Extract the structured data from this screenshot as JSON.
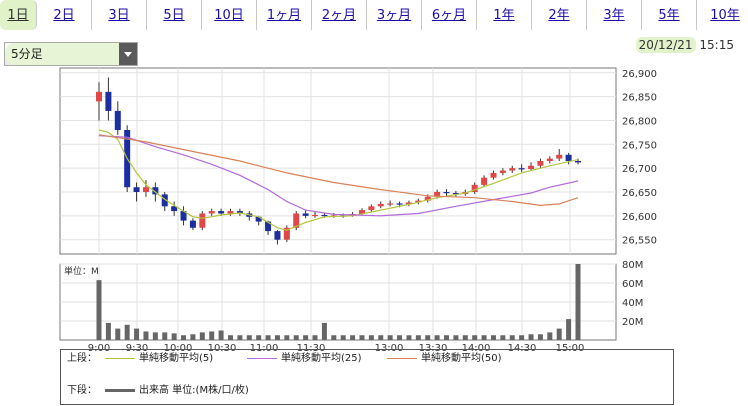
{
  "tabs": [
    {
      "label": "1日",
      "active": true
    },
    {
      "label": "2日"
    },
    {
      "label": "3日"
    },
    {
      "label": "5日"
    },
    {
      "label": "10日"
    },
    {
      "label": "1ヶ月"
    },
    {
      "label": "2ヶ月"
    },
    {
      "label": "3ヶ月"
    },
    {
      "label": "6ヶ月"
    },
    {
      "label": "1年"
    },
    {
      "label": "2年"
    },
    {
      "label": "3年"
    },
    {
      "label": "5年"
    },
    {
      "label": "10年"
    }
  ],
  "interval": {
    "value": "5分足"
  },
  "timestamp": {
    "date": "20/12/21",
    "time": "15:15"
  },
  "colors": {
    "up": "#e04848",
    "down": "#1c2fa0",
    "ma5": "#b5c43a",
    "ma25": "#b46ad8",
    "ma50": "#d9825a",
    "volume": "#666666"
  },
  "chart_data": [
    {
      "type": "candlestick",
      "x_labels": [
        "9:00",
        "9:30",
        "10:00",
        "10:30",
        "11:00",
        "11:30",
        "13:00",
        "13:30",
        "14:00",
        "14:30",
        "15:00"
      ],
      "ylim": [
        26520,
        26910
      ],
      "yticks": [
        "26,900",
        "26,850",
        "26,800",
        "26,750",
        "26,700",
        "26,650",
        "26,600",
        "26,550"
      ],
      "ytick_values": [
        26900,
        26850,
        26800,
        26750,
        26700,
        26650,
        26600,
        26550
      ],
      "candles": [
        [
          26840,
          26860,
          26880,
          26800
        ],
        [
          26860,
          26820,
          26890,
          26800
        ],
        [
          26820,
          26780,
          26840,
          26770
        ],
        [
          26780,
          26660,
          26790,
          26650
        ],
        [
          26660,
          26650,
          26670,
          26630
        ],
        [
          26650,
          26660,
          26675,
          26640
        ],
        [
          26660,
          26645,
          26670,
          26630
        ],
        [
          26645,
          26620,
          26650,
          26610
        ],
        [
          26620,
          26610,
          26630,
          26600
        ],
        [
          26610,
          26590,
          26620,
          26580
        ],
        [
          26590,
          26575,
          26595,
          26570
        ],
        [
          26575,
          26605,
          26610,
          26570
        ],
        [
          26605,
          26610,
          26615,
          26600
        ],
        [
          26610,
          26605,
          26615,
          26600
        ],
        [
          26605,
          26610,
          26615,
          26600
        ],
        [
          26610,
          26605,
          26615,
          26600
        ],
        [
          26605,
          26598,
          26610,
          26590
        ],
        [
          26598,
          26588,
          26600,
          26580
        ],
        [
          26588,
          26568,
          26590,
          26560
        ],
        [
          26568,
          26550,
          26570,
          26540
        ],
        [
          26550,
          26575,
          26580,
          26545
        ],
        [
          26575,
          26605,
          26610,
          26570
        ],
        [
          26605,
          26600,
          26612,
          26595
        ],
        [
          26600,
          26602,
          26608,
          26596
        ],
        [
          26602,
          26600,
          26606,
          26596
        ],
        [
          26600,
          26601,
          26606,
          26596
        ],
        [
          26601,
          26600,
          26605,
          26596
        ],
        [
          26600,
          26604,
          26608,
          26598
        ],
        [
          26604,
          26612,
          26616,
          26602
        ],
        [
          26612,
          26620,
          26624,
          26608
        ],
        [
          26620,
          26625,
          26630,
          26616
        ],
        [
          26625,
          26626,
          26632,
          26620
        ],
        [
          26626,
          26624,
          26630,
          26618
        ],
        [
          26624,
          26628,
          26632,
          26620
        ],
        [
          26628,
          26632,
          26636,
          26624
        ],
        [
          26632,
          26640,
          26645,
          26628
        ],
        [
          26640,
          26650,
          26655,
          26636
        ],
        [
          26650,
          26648,
          26656,
          26642
        ],
        [
          26648,
          26646,
          26652,
          26640
        ],
        [
          26646,
          26650,
          26655,
          26642
        ],
        [
          26650,
          26665,
          26670,
          26646
        ],
        [
          26665,
          26680,
          26685,
          26660
        ],
        [
          26680,
          26690,
          26695,
          26676
        ],
        [
          26690,
          26695,
          26700,
          26685
        ],
        [
          26695,
          26700,
          26705,
          26690
        ],
        [
          26700,
          26698,
          26708,
          26692
        ],
        [
          26698,
          26705,
          26712,
          26695
        ],
        [
          26705,
          26715,
          26720,
          26700
        ],
        [
          26715,
          26720,
          26725,
          26710
        ],
        [
          26720,
          26728,
          26740,
          26715
        ],
        [
          26728,
          26715,
          26732,
          26708
        ],
        [
          26715,
          26712,
          26720,
          26708
        ]
      ],
      "ma": [
        {
          "name": "単純移動平均(5)",
          "color_key": "ma5",
          "points": [
            [
              0,
              26780
            ],
            [
              1,
              26775
            ],
            [
              2,
              26760
            ],
            [
              3,
              26720
            ],
            [
              4,
              26690
            ],
            [
              5,
              26665
            ],
            [
              6,
              26650
            ],
            [
              7,
              26635
            ],
            [
              8,
              26622
            ],
            [
              9,
              26610
            ],
            [
              10,
              26598
            ],
            [
              11,
              26595
            ],
            [
              12,
              26598
            ],
            [
              13,
              26602
            ],
            [
              15,
              26606
            ],
            [
              17,
              26598
            ],
            [
              19,
              26575
            ],
            [
              20,
              26570
            ],
            [
              22,
              26586
            ],
            [
              24,
              26598
            ],
            [
              27,
              26600
            ],
            [
              30,
              26612
            ],
            [
              33,
              26624
            ],
            [
              36,
              26638
            ],
            [
              39,
              26648
            ],
            [
              42,
              26668
            ],
            [
              45,
              26690
            ],
            [
              48,
              26705
            ],
            [
              51,
              26718
            ]
          ]
        },
        {
          "name": "単純移動平均(25)",
          "color_key": "ma25",
          "points": [
            [
              0,
              26768
            ],
            [
              3,
              26765
            ],
            [
              6,
              26745
            ],
            [
              9,
              26728
            ],
            [
              12,
              26708
            ],
            [
              15,
              26685
            ],
            [
              18,
              26655
            ],
            [
              20,
              26630
            ],
            [
              22,
              26612
            ],
            [
              25,
              26603
            ],
            [
              30,
              26600
            ],
            [
              34,
              26605
            ],
            [
              38,
              26620
            ],
            [
              42,
              26634
            ],
            [
              46,
              26648
            ],
            [
              48,
              26660
            ],
            [
              51,
              26673
            ]
          ]
        },
        {
          "name": "単純移動平均(50)",
          "color_key": "ma50",
          "points": [
            [
              0,
              26770
            ],
            [
              5,
              26755
            ],
            [
              10,
              26735
            ],
            [
              15,
              26715
            ],
            [
              20,
              26690
            ],
            [
              25,
              26670
            ],
            [
              30,
              26655
            ],
            [
              35,
              26642
            ],
            [
              40,
              26638
            ],
            [
              44,
              26630
            ],
            [
              47,
              26622
            ],
            [
              49,
              26625
            ],
            [
              51,
              26638
            ]
          ]
        }
      ]
    },
    {
      "type": "bar",
      "unit_label": "単位：M",
      "ylim": [
        0,
        80
      ],
      "yticks": [
        "80M",
        "60M",
        "40M",
        "20M"
      ],
      "ytick_values": [
        80,
        60,
        40,
        20
      ],
      "values": [
        63,
        18,
        12,
        16,
        12,
        9,
        8,
        8,
        7,
        5,
        6,
        8,
        9,
        10,
        5,
        5,
        5,
        5,
        5,
        5,
        5,
        5,
        5,
        5,
        18,
        5,
        5,
        5,
        5,
        5,
        5,
        5,
        5,
        5,
        5,
        5,
        5,
        5,
        5,
        5,
        5,
        5,
        5,
        5,
        5,
        5,
        6,
        6,
        8,
        12,
        22,
        80
      ]
    }
  ],
  "legend": {
    "upper_label": "上段：",
    "lower_label": "下段：",
    "ma5": "単純移動平均(5)",
    "ma25": "単純移動平均(25)",
    "ma50": "単純移動平均(50)",
    "volume": "出来高 単位:(M株/口/枚)"
  }
}
